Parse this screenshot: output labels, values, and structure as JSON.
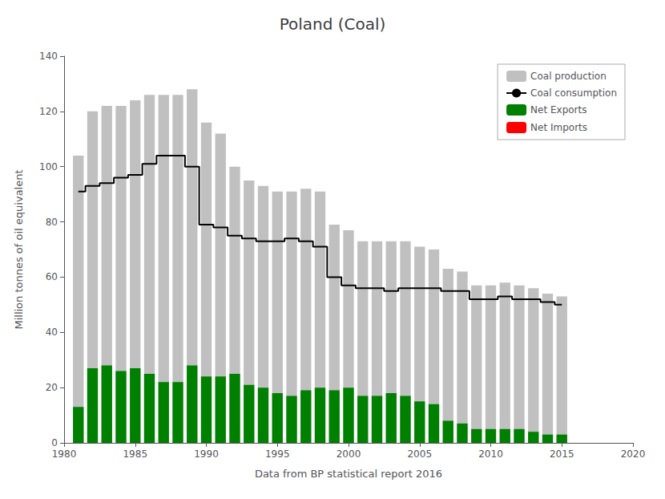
{
  "chart_data": {
    "type": "bar",
    "title": "Poland (Coal)",
    "xlabel": "Data from BP statistical report 2016",
    "ylabel": "Million tonnes of oil equivalent",
    "x": [
      1981,
      1982,
      1983,
      1984,
      1985,
      1986,
      1987,
      1988,
      1989,
      1990,
      1991,
      1992,
      1993,
      1994,
      1995,
      1996,
      1997,
      1998,
      1999,
      2000,
      2001,
      2002,
      2003,
      2004,
      2005,
      2006,
      2007,
      2008,
      2009,
      2010,
      2011,
      2012,
      2013,
      2014,
      2015
    ],
    "series": [
      {
        "name": "Coal production",
        "type": "bar",
        "color": "#c0c0c0",
        "values": [
          104,
          120,
          122,
          122,
          124,
          126,
          126,
          126,
          128,
          116,
          112,
          100,
          95,
          93,
          91,
          91,
          92,
          91,
          79,
          77,
          73,
          73,
          73,
          73,
          71,
          70,
          63,
          62,
          57,
          57,
          58,
          57,
          56,
          54,
          53
        ]
      },
      {
        "name": "Coal consumption",
        "type": "line",
        "color": "#000000",
        "line_style": "step",
        "values": [
          91,
          93,
          94,
          96,
          97,
          101,
          104,
          104,
          100,
          79,
          78,
          75,
          74,
          73,
          73,
          74,
          73,
          71,
          60,
          57,
          56,
          56,
          55,
          56,
          56,
          56,
          55,
          55,
          52,
          52,
          53,
          52,
          52,
          51,
          50
        ]
      },
      {
        "name": "Net Exports",
        "type": "bar",
        "color": "#008000",
        "values": [
          13,
          27,
          28,
          26,
          27,
          25,
          22,
          22,
          28,
          24,
          24,
          25,
          21,
          20,
          18,
          17,
          19,
          20,
          19,
          20,
          17,
          17,
          18,
          17,
          15,
          14,
          8,
          7,
          5,
          5,
          5,
          5,
          4,
          3,
          3
        ]
      },
      {
        "name": "Net Imports",
        "type": "bar",
        "color": "#ff0000",
        "values": [
          0,
          0,
          0,
          0,
          0,
          0,
          0,
          0,
          0,
          0,
          0,
          0,
          0,
          0,
          0,
          0,
          0,
          0,
          0,
          0,
          0,
          0,
          0,
          0,
          0,
          0,
          0,
          0,
          0,
          0,
          0,
          0,
          0,
          0,
          0
        ]
      }
    ],
    "xlim": [
      1980,
      2020
    ],
    "ylim": [
      0,
      140
    ],
    "xticks": [
      1980,
      1985,
      1990,
      1995,
      2000,
      2005,
      2010,
      2015,
      2020
    ],
    "yticks": [
      0,
      20,
      40,
      60,
      80,
      100,
      120,
      140
    ],
    "grid": false,
    "legend": "upper right"
  }
}
